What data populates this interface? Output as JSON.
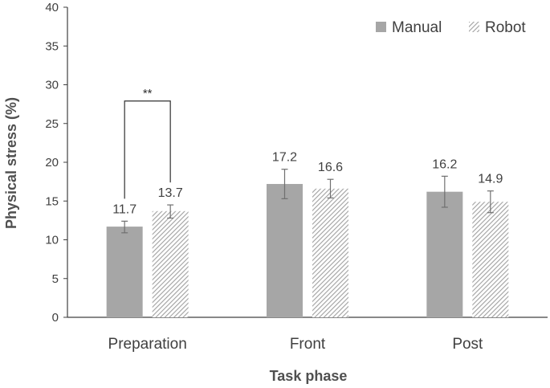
{
  "chart_data": {
    "type": "bar",
    "title": "",
    "xlabel": "Task phase",
    "ylabel": "Physical stress (%)",
    "ylim": [
      0,
      40
    ],
    "yticks": [
      0,
      5,
      10,
      15,
      20,
      25,
      30,
      35,
      40
    ],
    "categories": [
      "Preparation",
      "Front",
      "Post"
    ],
    "series": [
      {
        "name": "Manual",
        "values": [
          11.7,
          17.2,
          16.2
        ],
        "error_low": [
          10.9,
          15.3,
          14.2
        ],
        "error_high": [
          12.4,
          19.1,
          18.2
        ],
        "labels": [
          "11.7",
          "17.2",
          "16.2"
        ],
        "fill": "solid",
        "color": "#a6a6a6"
      },
      {
        "name": "Robot",
        "values": [
          13.7,
          16.6,
          14.9
        ],
        "error_low": [
          12.8,
          15.4,
          13.5
        ],
        "error_high": [
          14.5,
          17.8,
          16.3
        ],
        "labels": [
          "13.7",
          "16.6",
          "14.9"
        ],
        "fill": "hatched",
        "color": "#a6a6a6"
      }
    ],
    "significance": [
      {
        "category_index": 0,
        "label": "**",
        "bracket_top": 27.9
      }
    ],
    "legend": {
      "position": "top-right"
    },
    "grid": false
  }
}
